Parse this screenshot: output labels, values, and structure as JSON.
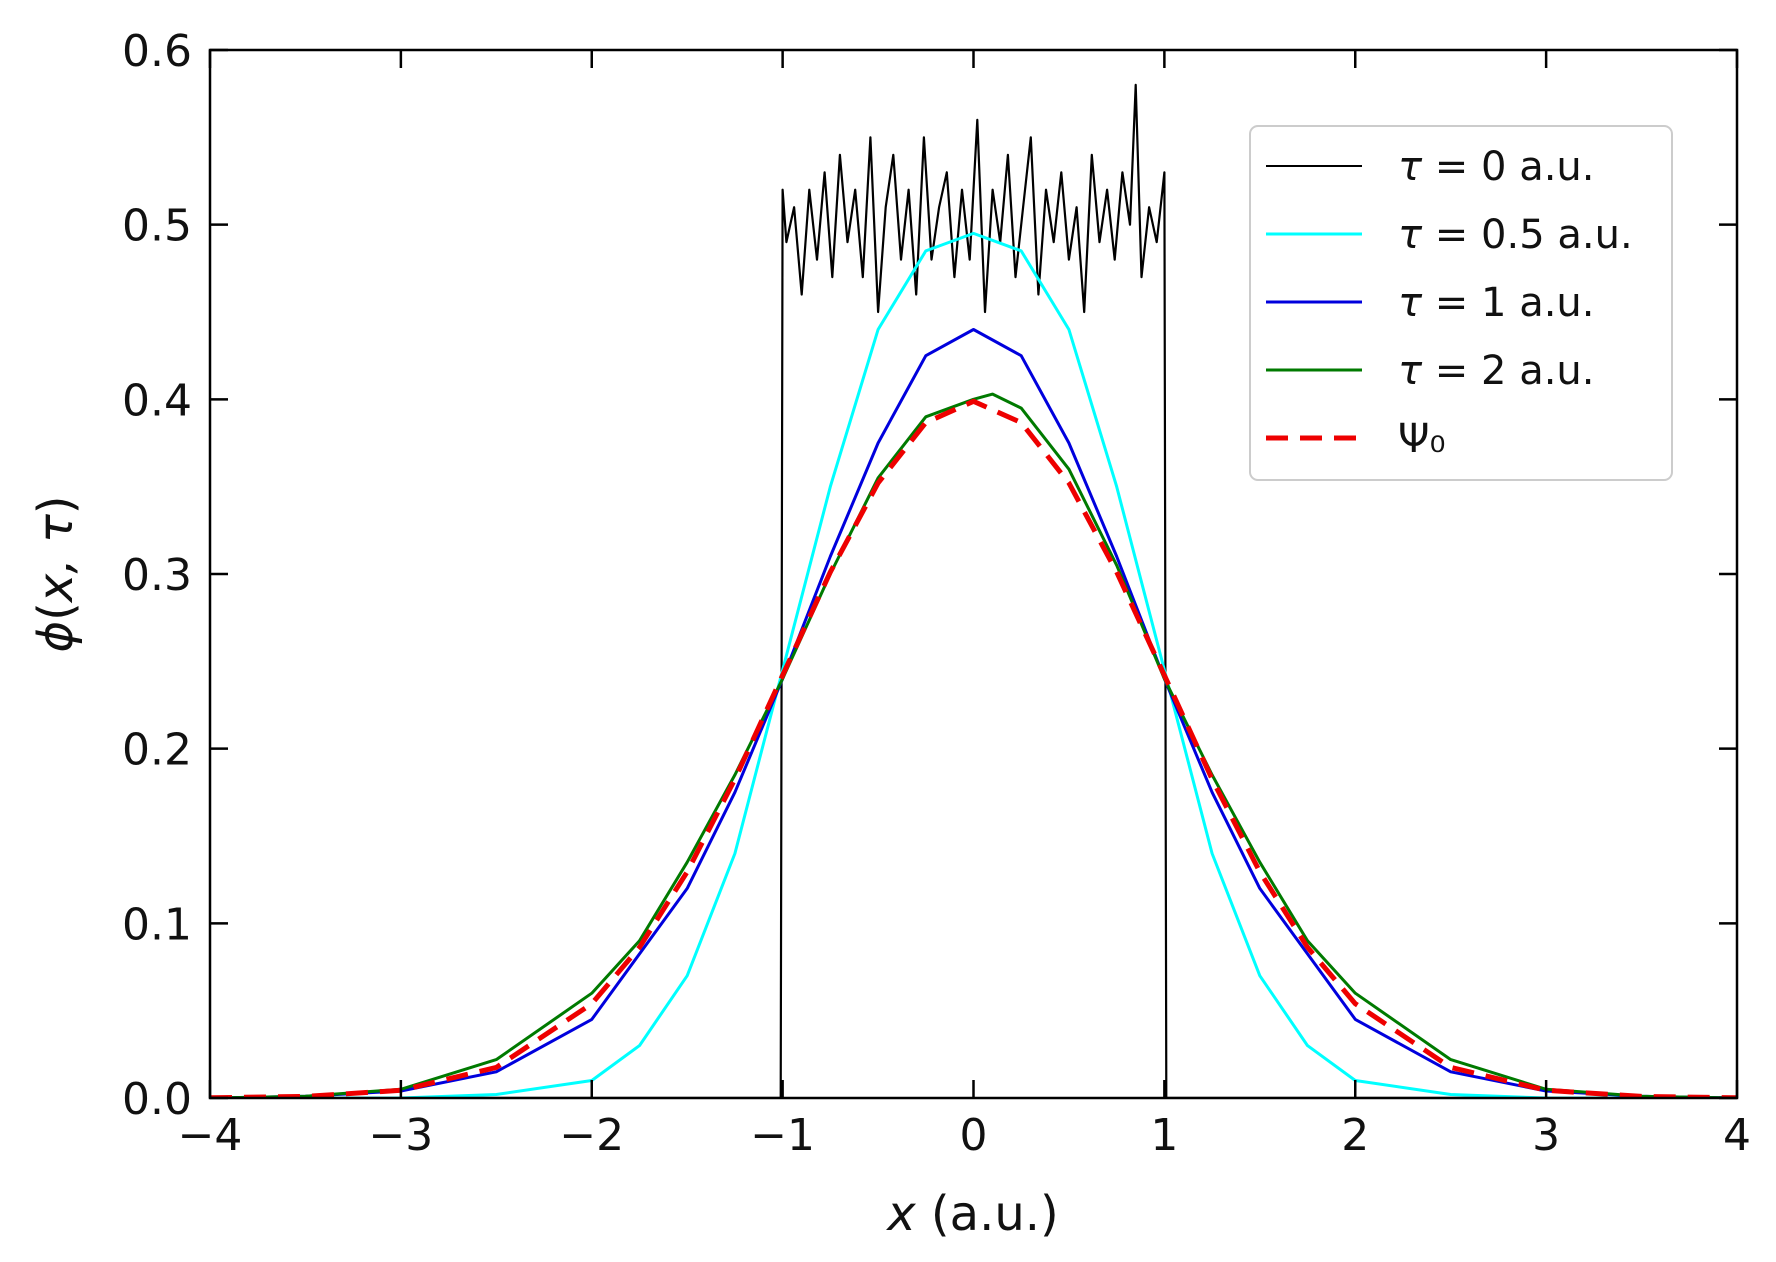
{
  "chart_data": {
    "type": "line",
    "title": "",
    "xlabel_var": "x",
    "xlabel_unit": " (a.u.)",
    "ylabel_var": "ϕ",
    "ylabel_open": "(",
    "ylabel_args": "x, τ",
    "ylabel_close": ")",
    "xlim": [
      -4,
      4
    ],
    "ylim": [
      0.0,
      0.6
    ],
    "grid": false,
    "legend_position": "top-right",
    "xticks": [
      -4,
      -3,
      -2,
      -1,
      0,
      1,
      2,
      3,
      4
    ],
    "xtick_labels": [
      "−4",
      "−3",
      "−2",
      "−1",
      "0",
      "1",
      "2",
      "3",
      "4"
    ],
    "yticks": [
      0.0,
      0.1,
      0.2,
      0.3,
      0.4,
      0.5,
      0.6
    ],
    "ytick_labels": [
      "0.0",
      "0.1",
      "0.2",
      "0.3",
      "0.4",
      "0.5",
      "0.6"
    ],
    "series": [
      {
        "key": "tau0",
        "name": "τ = 0 a.u.",
        "legend_symbol": "τ",
        "legend_rest": " = 0 a.u.",
        "color": "#000000",
        "style": "solid",
        "description": "noisy rectangle, zero outside [-1, 1]",
        "x": [
          -4.0,
          -1.01,
          -1.0,
          -0.98,
          -0.94,
          -0.9,
          -0.86,
          -0.82,
          -0.78,
          -0.74,
          -0.7,
          -0.66,
          -0.62,
          -0.58,
          -0.54,
          -0.5,
          -0.46,
          -0.42,
          -0.38,
          -0.34,
          -0.3,
          -0.26,
          -0.22,
          -0.18,
          -0.14,
          -0.1,
          -0.06,
          -0.02,
          0.02,
          0.06,
          0.1,
          0.14,
          0.18,
          0.22,
          0.26,
          0.3,
          0.34,
          0.38,
          0.42,
          0.46,
          0.5,
          0.54,
          0.58,
          0.62,
          0.66,
          0.7,
          0.74,
          0.78,
          0.82,
          0.85,
          0.88,
          0.92,
          0.96,
          0.99,
          1.0,
          1.01,
          4.0
        ],
        "y": [
          0.0,
          0.0,
          0.52,
          0.49,
          0.51,
          0.46,
          0.52,
          0.48,
          0.53,
          0.47,
          0.54,
          0.49,
          0.52,
          0.47,
          0.55,
          0.45,
          0.51,
          0.54,
          0.48,
          0.52,
          0.46,
          0.55,
          0.48,
          0.51,
          0.53,
          0.47,
          0.52,
          0.48,
          0.56,
          0.45,
          0.52,
          0.49,
          0.54,
          0.47,
          0.51,
          0.55,
          0.46,
          0.52,
          0.49,
          0.53,
          0.48,
          0.51,
          0.45,
          0.54,
          0.49,
          0.52,
          0.48,
          0.53,
          0.5,
          0.58,
          0.47,
          0.51,
          0.49,
          0.52,
          0.53,
          0.0,
          0.0
        ]
      },
      {
        "key": "tau05",
        "name": "τ = 0.5 a.u.",
        "legend_symbol": "τ",
        "legend_rest": " = 0.5 a.u.",
        "color": "#00ffff",
        "style": "solid",
        "x": [
          -4.0,
          -3.0,
          -2.5,
          -2.0,
          -1.75,
          -1.5,
          -1.25,
          -1.0,
          -0.75,
          -0.5,
          -0.25,
          0.0,
          0.25,
          0.5,
          0.75,
          1.0,
          1.25,
          1.5,
          1.75,
          2.0,
          2.5,
          3.0,
          4.0
        ],
        "y": [
          0.0,
          0.0,
          0.002,
          0.01,
          0.03,
          0.07,
          0.14,
          0.245,
          0.35,
          0.44,
          0.485,
          0.495,
          0.485,
          0.44,
          0.35,
          0.245,
          0.14,
          0.07,
          0.03,
          0.01,
          0.002,
          0.0,
          0.0
        ]
      },
      {
        "key": "tau1",
        "name": "τ = 1 a.u.",
        "legend_symbol": "τ",
        "legend_rest": " = 1 a.u.",
        "color": "#0000dd",
        "style": "solid",
        "x": [
          -4.0,
          -3.5,
          -3.0,
          -2.5,
          -2.0,
          -1.5,
          -1.25,
          -1.0,
          -0.75,
          -0.5,
          -0.25,
          0.0,
          0.25,
          0.5,
          0.75,
          1.0,
          1.25,
          1.5,
          2.0,
          2.5,
          3.0,
          3.5,
          4.0
        ],
        "y": [
          0.0,
          0.001,
          0.004,
          0.015,
          0.045,
          0.12,
          0.175,
          0.24,
          0.31,
          0.375,
          0.425,
          0.44,
          0.425,
          0.375,
          0.31,
          0.24,
          0.175,
          0.12,
          0.045,
          0.015,
          0.004,
          0.001,
          0.0
        ]
      },
      {
        "key": "tau2",
        "name": "τ = 2 a.u.",
        "legend_symbol": "τ",
        "legend_rest": " = 2 a.u.",
        "color": "#007a00",
        "style": "solid",
        "x": [
          -4.0,
          -3.5,
          -3.0,
          -2.5,
          -2.0,
          -1.75,
          -1.5,
          -1.25,
          -1.0,
          -0.75,
          -0.5,
          -0.25,
          0.0,
          0.1,
          0.25,
          0.5,
          0.75,
          1.0,
          1.25,
          1.5,
          1.75,
          2.0,
          2.5,
          3.0,
          3.5,
          4.0
        ],
        "y": [
          0.0,
          0.001,
          0.005,
          0.022,
          0.06,
          0.09,
          0.135,
          0.185,
          0.24,
          0.3,
          0.355,
          0.39,
          0.4,
          0.403,
          0.395,
          0.36,
          0.305,
          0.24,
          0.185,
          0.135,
          0.09,
          0.06,
          0.022,
          0.005,
          0.001,
          0.0
        ]
      },
      {
        "key": "psi0",
        "name": "Ψ₀",
        "legend_symbol": "Ψ",
        "legend_rest": "₀",
        "color": "#ee0000",
        "style": "dashed",
        "description": "Gaussian ground state, exp(-x^2/2)/sqrt(2*pi)",
        "x": [
          -4.0,
          -3.5,
          -3.0,
          -2.5,
          -2.0,
          -1.75,
          -1.5,
          -1.25,
          -1.0,
          -0.75,
          -0.5,
          -0.25,
          0.0,
          0.25,
          0.5,
          0.75,
          1.0,
          1.25,
          1.5,
          1.75,
          2.0,
          2.5,
          3.0,
          3.5,
          4.0
        ],
        "y": [
          0.0001,
          0.0009,
          0.0044,
          0.0175,
          0.054,
          0.0863,
          0.1295,
          0.1826,
          0.242,
          0.3011,
          0.3521,
          0.3867,
          0.3989,
          0.3867,
          0.3521,
          0.3011,
          0.242,
          0.1826,
          0.1295,
          0.0863,
          0.054,
          0.0175,
          0.0044,
          0.0009,
          0.0001
        ]
      }
    ]
  }
}
